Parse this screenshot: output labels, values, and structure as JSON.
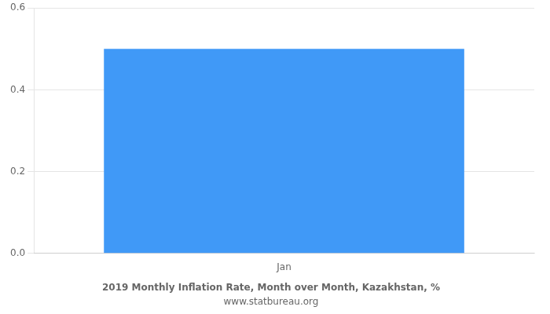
{
  "chart_data": {
    "type": "bar",
    "title": "2019 Monthly Inflation Rate, Month over Month, Kazakhstan, %",
    "subtitle": "www.statbureau.org",
    "categories": [
      "Jan"
    ],
    "values": [
      0.5
    ],
    "color": "#4099f7",
    "ylim": [
      0,
      0.6
    ],
    "yticks": [
      {
        "value": 0,
        "label": "0.0"
      },
      0.2,
      0.4,
      0.6
    ],
    "grid": true
  }
}
